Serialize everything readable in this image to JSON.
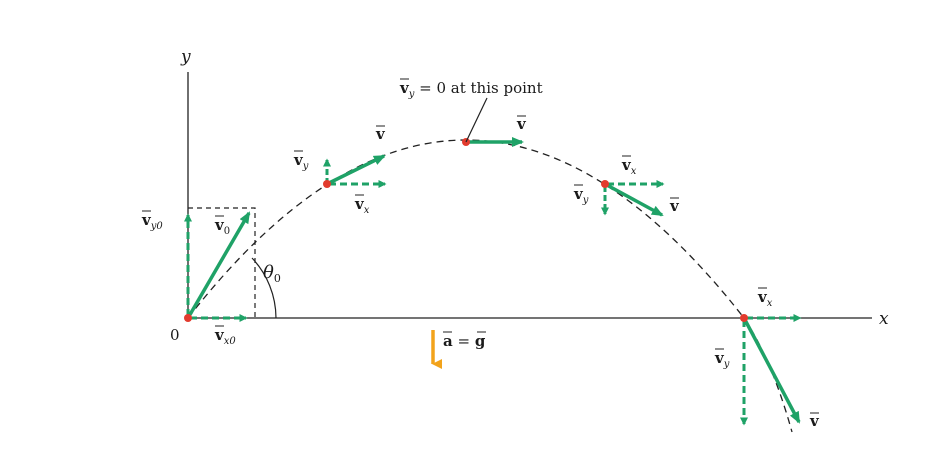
{
  "axes": {
    "x_label": "x",
    "y_label": "y",
    "origin_label": "0"
  },
  "angle": {
    "symbol": "θ",
    "subscript": "0"
  },
  "points": {
    "launch": {
      "v_label": "v",
      "v_sub": "0",
      "vy_label": "v",
      "vy_sub": "y0",
      "vx_label": "v",
      "vx_sub": "x0"
    },
    "rising": {
      "v_label": "v",
      "vy_label": "v",
      "vy_sub": "y",
      "vx_label": "v",
      "vx_sub": "x"
    },
    "apex": {
      "v_label": "v",
      "note_v": "v",
      "note_sub": "y",
      "note_text": " = 0 at this point"
    },
    "falling": {
      "v_label": "v",
      "vy_label": "v",
      "vy_sub": "y",
      "vx_label": "v",
      "vx_sub": "x"
    },
    "landing": {
      "v_label": "v",
      "vy_label": "v",
      "vy_sub": "y",
      "vx_label": "v",
      "vx_sub": "x"
    }
  },
  "acceleration": {
    "a_label": "a",
    "equals": " = ",
    "g_label": "g"
  },
  "colors": {
    "vector_green": "#1fa267",
    "point_red": "#e23b2e",
    "accel_orange": "#f2a31b",
    "line_black": "#222222"
  }
}
